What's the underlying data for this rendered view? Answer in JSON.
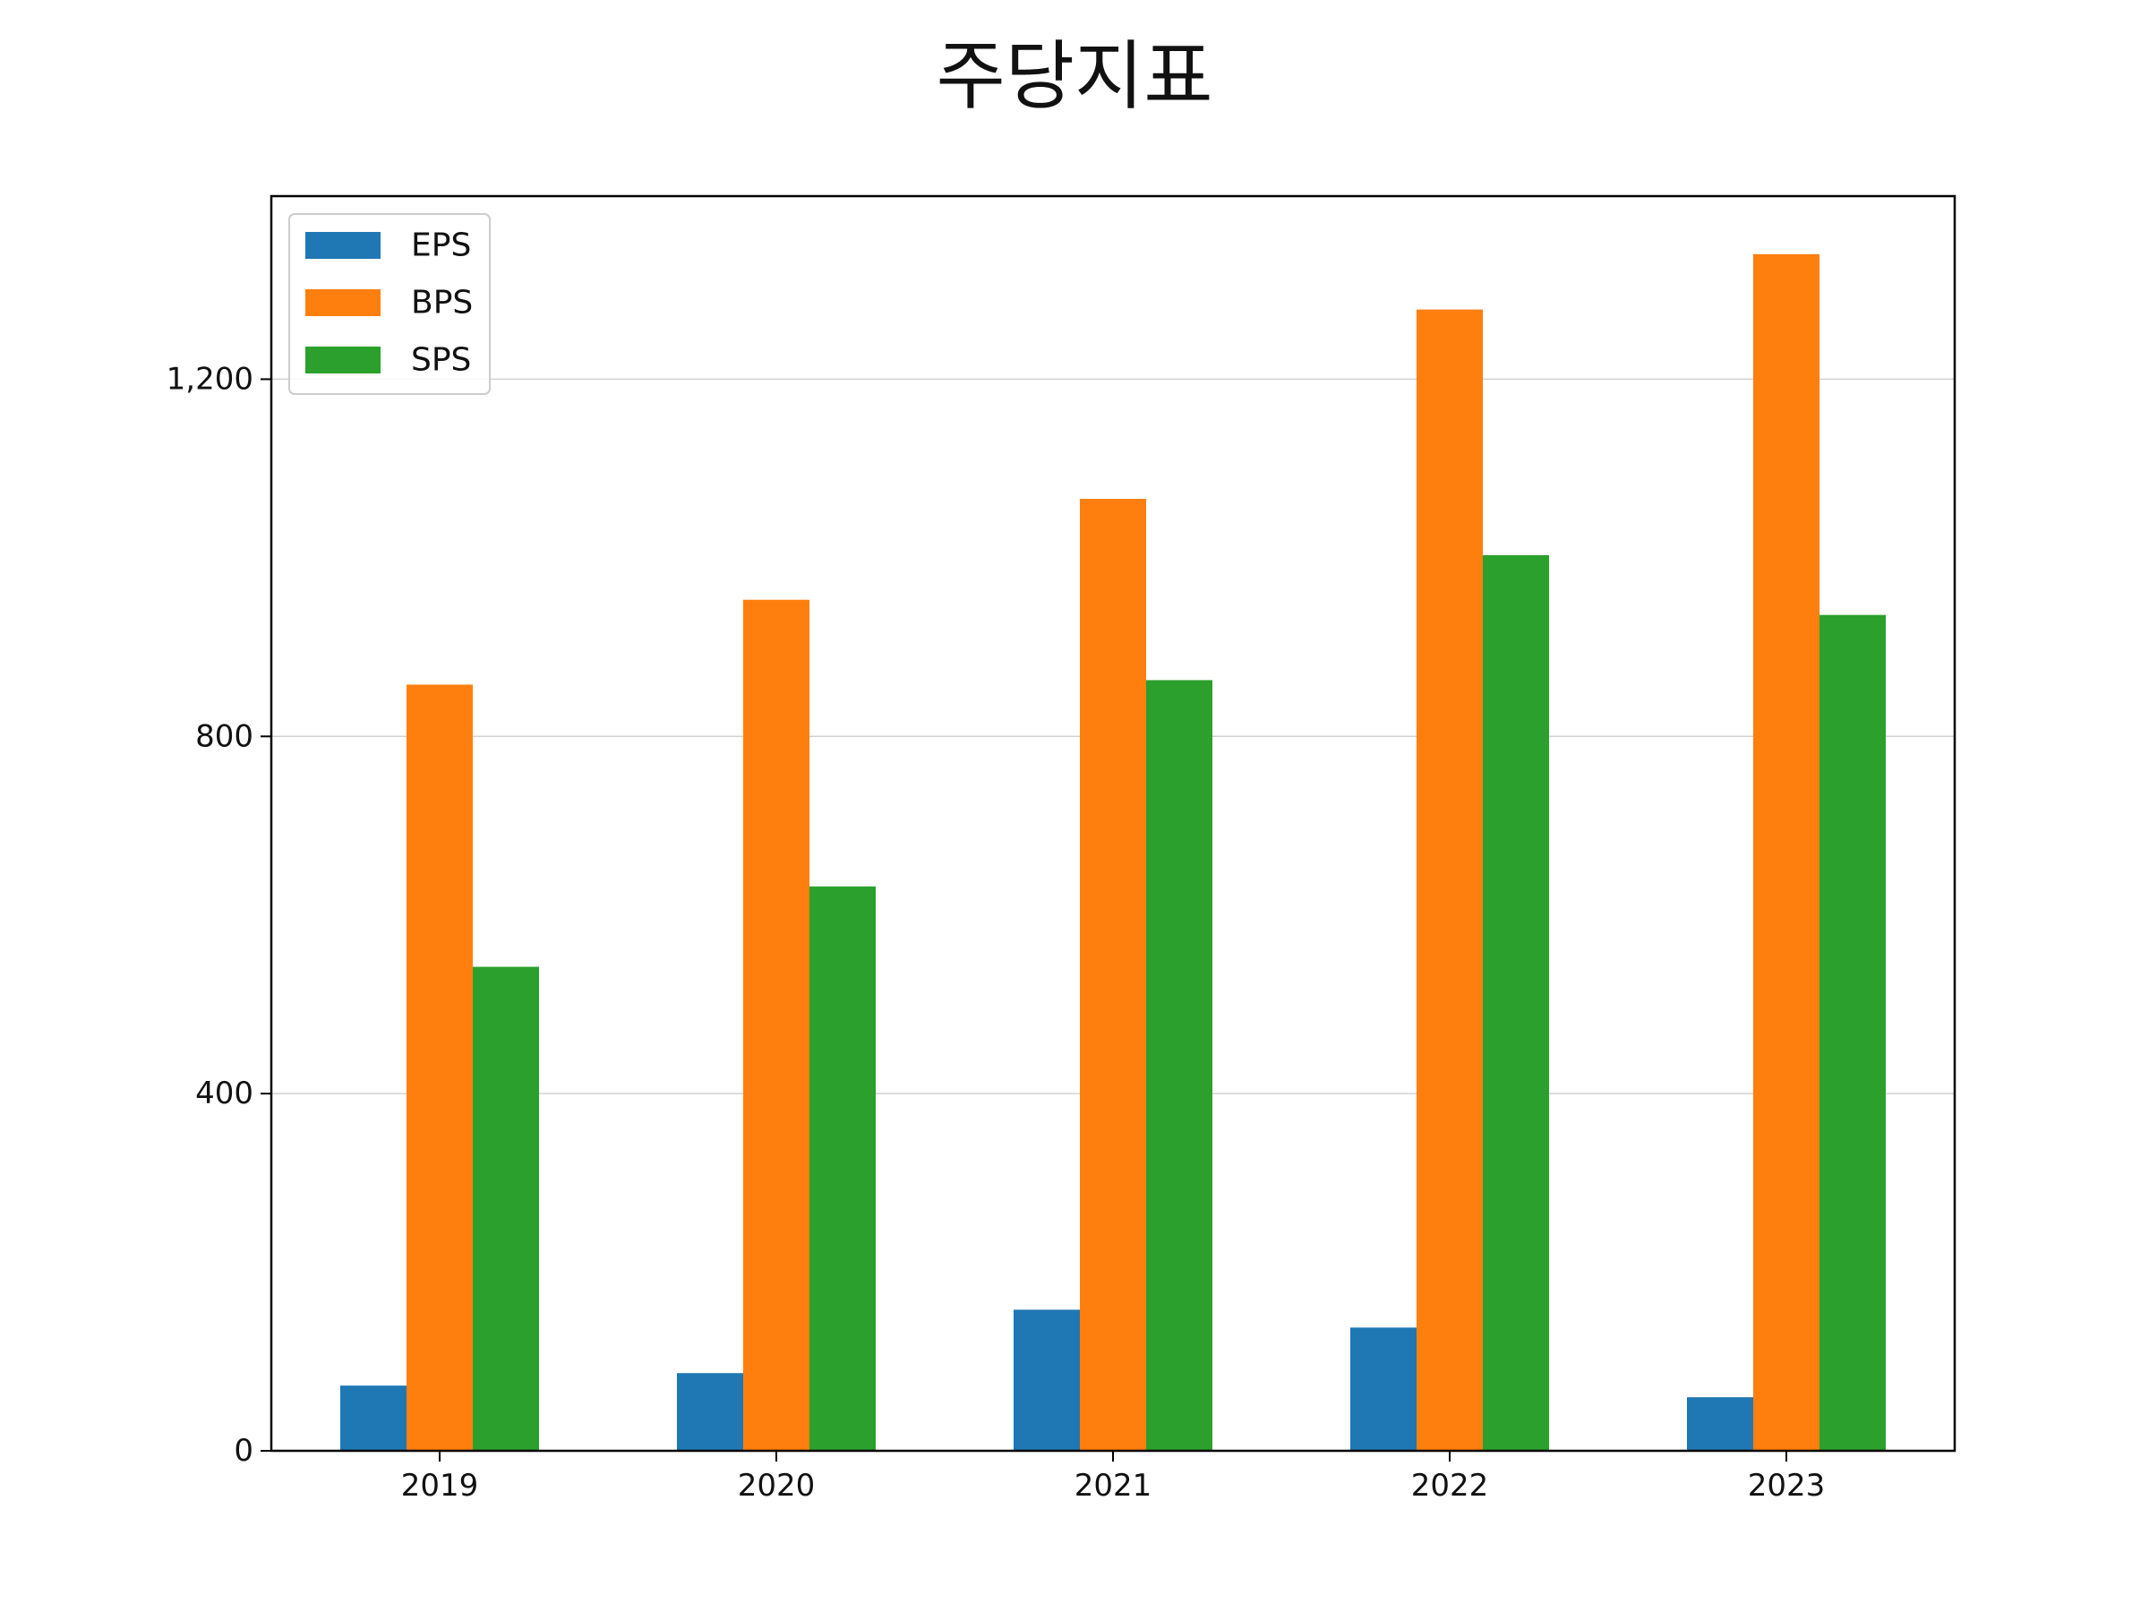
{
  "chart_data": {
    "type": "bar",
    "title": "주당지표",
    "xlabel": "",
    "ylabel": "",
    "categories": [
      "2019",
      "2020",
      "2021",
      "2022",
      "2023"
    ],
    "series": [
      {
        "name": "EPS",
        "color": "#1f77b4",
        "values": [
          73,
          87,
          158,
          138,
          60
        ]
      },
      {
        "name": "BPS",
        "color": "#ff7f0e",
        "values": [
          858,
          953,
          1066,
          1278,
          1340
        ]
      },
      {
        "name": "SPS",
        "color": "#2ca02c",
        "values": [
          542,
          632,
          863,
          1003,
          936
        ]
      }
    ],
    "ylim": [
      0,
      1405
    ],
    "yticks": [
      0,
      400,
      800,
      1200
    ],
    "ytick_labels": [
      "0",
      "400",
      "800",
      "1,200"
    ],
    "grid": "y",
    "legend_position": "top-left"
  }
}
